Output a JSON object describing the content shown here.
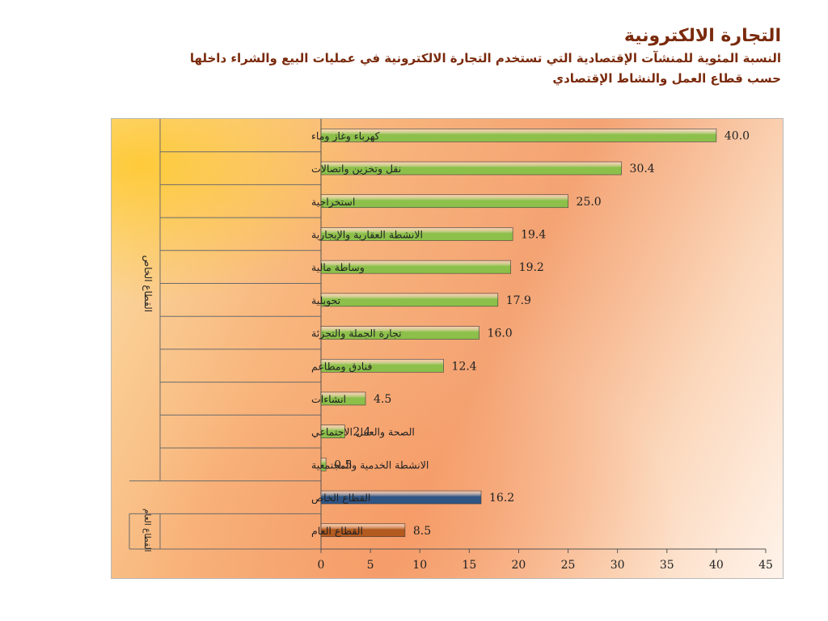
{
  "header": {
    "title": "التجارة الالكترونية",
    "subtitle_line1": "النسبة المئوية للمنشآت الإقتصادية التي تستخدم التجارة الالكترونية في عمليات البيع والشراء داخلها",
    "subtitle_line2": "حسب قطاع العمل والنشاط الإقتصادي"
  },
  "chart_data": {
    "type": "bar",
    "orientation": "horizontal",
    "categories": [
      "كهرباء وغاز وماء",
      "نقل وتخزين واتصالات",
      "استخراجية",
      "الانشطة العقارية والإيجارية",
      "وساطة مالية",
      "تحويلية",
      "تجارة الجملة والتجزئة",
      "فنادق ومطاعم",
      "انشاءات",
      "الصحة والعمل الاجتماعي",
      "الانشطة الخدمية والمجتمعية",
      "القطاع الخاص",
      "القطاع العام"
    ],
    "values": [
      40.0,
      30.4,
      25.0,
      19.4,
      19.2,
      17.9,
      16.0,
      12.4,
      4.5,
      2.4,
      0.5,
      16.2,
      8.5
    ],
    "value_labels": [
      "40.0",
      "30.4",
      "25.0",
      "19.4",
      "19.2",
      "17.9",
      "16.0",
      "12.4",
      "4.5",
      "2.4",
      "0.5",
      "16.2",
      "8.5"
    ],
    "bar_colors": [
      "#8cc04a",
      "#8cc04a",
      "#8cc04a",
      "#8cc04a",
      "#8cc04a",
      "#8cc04a",
      "#8cc04a",
      "#8cc04a",
      "#8cc04a",
      "#8cc04a",
      "#8cc04a",
      "#2f5585",
      "#b35a1f"
    ],
    "groups": [
      {
        "label": "القطاع الخاص",
        "from": 0,
        "to": 10
      },
      {
        "label": "القطاع العام",
        "from": 12,
        "to": 12
      }
    ],
    "xlim": [
      0,
      45
    ],
    "xticks": [
      0,
      5,
      10,
      15,
      20,
      25,
      30,
      35,
      40,
      45
    ],
    "xtick_labels": [
      "0",
      "5",
      "10",
      "15",
      "20",
      "25",
      "30",
      "35",
      "40",
      "45"
    ],
    "grid": false
  }
}
